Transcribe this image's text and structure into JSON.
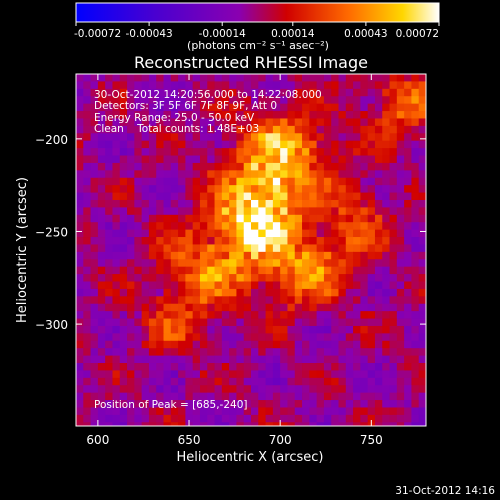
{
  "chart_data": {
    "type": "heatmap",
    "title": "Reconstructed RHESSI Image",
    "xlabel": "Heliocentric X (arcsec)",
    "ylabel": "Heliocentric Y (arcsec)",
    "xlim": [
      588,
      780
    ],
    "ylim": [
      -355,
      -165
    ],
    "xticks": [
      600,
      650,
      700,
      750
    ],
    "yticks": [
      -200,
      -250,
      -300
    ],
    "colorbar": {
      "unit_label": "(photons cm⁻² s⁻¹ asec⁻²)",
      "range": [
        -0.00072,
        0.00072
      ],
      "tick_values": [
        -0.00072,
        -0.00043,
        -0.00014,
        0.00014,
        0.00043,
        0.00072
      ],
      "tick_labels": [
        "-0.00072",
        "-0.00043",
        "-0.00014",
        "0.00014",
        "0.00043",
        "0.00072"
      ],
      "palette": [
        "#0000ff",
        "#5a00c8",
        "#9b00a0",
        "#d40000",
        "#ff7a00",
        "#ffe000",
        "#ffffff"
      ]
    },
    "annotations": [
      "30-Oct-2012 14:20:56.000 to 14:22:08.000",
      "Detectors: 3F 5F 6F 7F 8F 9F, Att 0",
      "Energy Range: 25.0 - 50.0 keV",
      "Clean    Total counts: 1.48E+03"
    ],
    "peak_text": "Position of Peak = [685,-240]",
    "peak": {
      "x": 685,
      "y": -240,
      "value": 0.00072
    },
    "source_regions": [
      {
        "x": 685,
        "y": -240,
        "sx": 16,
        "sy": 18,
        "amp": 0.00072
      },
      {
        "x": 700,
        "y": -205,
        "sx": 18,
        "sy": 16,
        "amp": 0.0005
      },
      {
        "x": 712,
        "y": -270,
        "sx": 14,
        "sy": 14,
        "amp": 0.0004
      },
      {
        "x": 655,
        "y": -270,
        "sx": 18,
        "sy": 16,
        "amp": 0.00036
      },
      {
        "x": 740,
        "y": -245,
        "sx": 12,
        "sy": 16,
        "amp": 0.00028
      },
      {
        "x": 765,
        "y": -180,
        "sx": 14,
        "sy": 12,
        "amp": 0.00034
      },
      {
        "x": 640,
        "y": -300,
        "sx": 12,
        "sy": 10,
        "amp": 0.00022
      }
    ]
  },
  "footer_timestamp": "31-Oct-2012 14:16"
}
